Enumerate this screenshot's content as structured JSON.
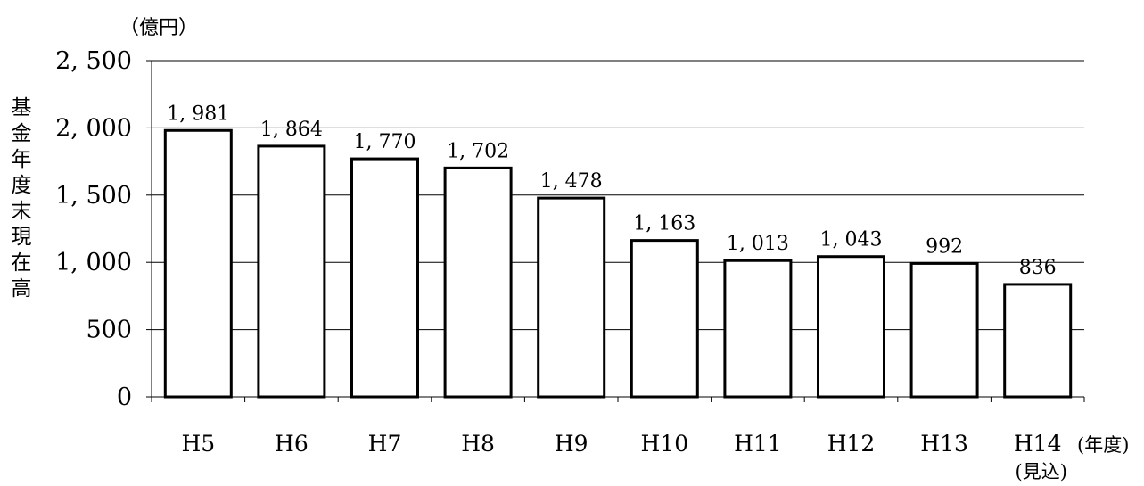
{
  "chart_data": {
    "type": "bar",
    "unit_label": "（億円）",
    "ylabel": "基金年度末現在高",
    "xunit_label": "(年度)",
    "categories": [
      "H5",
      "H6",
      "H7",
      "H8",
      "H9",
      "H10",
      "H11",
      "H12",
      "H13",
      "H14"
    ],
    "category_notes": [
      "",
      "",
      "",
      "",
      "",
      "",
      "",
      "",
      "",
      "(見込)"
    ],
    "values": [
      1981,
      1864,
      1770,
      1702,
      1478,
      1163,
      1013,
      1043,
      992,
      836
    ],
    "value_labels": [
      "1, 981",
      "1, 864",
      "1, 770",
      "1, 702",
      "1, 478",
      "1, 163",
      "1, 013",
      "1, 043",
      "992",
      "836"
    ],
    "yticks": [
      0,
      500,
      1000,
      1500,
      2000,
      2500
    ],
    "ytick_labels": [
      "0",
      "500",
      "1, 000",
      "1, 500",
      "2, 000",
      "2, 500"
    ],
    "ylim": [
      0,
      2500
    ],
    "grid": true,
    "colors": {
      "bar_fill": "#ffffff",
      "bar_stroke": "#000000",
      "grid": "#000000"
    }
  }
}
